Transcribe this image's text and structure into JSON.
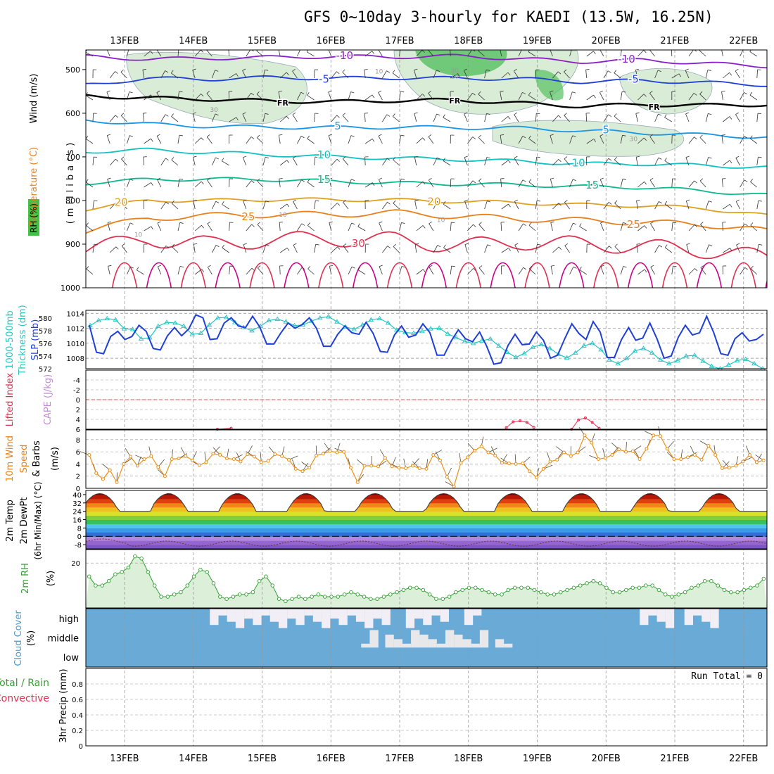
{
  "title": "GFS 0~10day 3-hourly for KAEDI (13.5W, 16.25N)",
  "dates": [
    "13FEB",
    "14FEB",
    "15FEB",
    "16FEB",
    "17FEB",
    "18FEB",
    "19FEB",
    "20FEB",
    "21FEB",
    "22FEB"
  ],
  "colors": {
    "purple": "#8a1fc8",
    "blue": "#1f3fd6",
    "skyblue": "#1a96e8",
    "cyan": "#12c2c2",
    "green": "#10b890",
    "gold": "#e0a020",
    "orange": "#e8801c",
    "red": "#e03050",
    "magenta": "#cc0088",
    "rh_fill": "#b9ddb3",
    "slp": "#1f3fd6",
    "thick": "#27c4c4",
    "wind": "#e8901c",
    "cloud": "#6aaad6",
    "rh2m": "#33a033"
  },
  "chart_data": [
    {
      "type": "contour",
      "panel": "upper-air",
      "ylabel_vertical": "(millibars)",
      "left_labels": [
        {
          "text": "Wind (m/s)",
          "color": "#000000"
        },
        {
          "text": "Temperature (°C)",
          "color": "#e8801c"
        },
        {
          "text": "RH (%)",
          "color": "#000000"
        }
      ],
      "pressure_ticks": [
        "500",
        "600",
        "700",
        "800",
        "900",
        "1000"
      ],
      "pressure_levels": [
        500,
        600,
        700,
        800,
        900,
        1000
      ],
      "ylim": [
        455,
        1000
      ],
      "contours": [
        {
          "label": "-10",
          "color": "#8a1fc8",
          "level": [
            470,
            476,
            474,
            472,
            470,
            471,
            469,
            475,
            482,
            478,
            486,
            492
          ],
          "labels": [
            {
              "text": "-10",
              "day": 3.2
            },
            {
              "text": "-10",
              "day": 7.3
            }
          ]
        },
        {
          "label": "-5",
          "color": "#1f3fd6",
          "level": [
            535,
            520,
            522,
            518,
            520,
            519,
            520,
            521,
            528,
            525,
            530,
            535
          ],
          "labels": [
            {
              "text": "-5",
              "day": 2.9
            },
            {
              "text": "-5",
              "day": 7.4
            }
          ]
        },
        {
          "label": "FR",
          "color": "#000000",
          "level": [
            560,
            565,
            568,
            572,
            574,
            571,
            570,
            577,
            584,
            580,
            582,
            580
          ],
          "labels": [
            {
              "text": "FR",
              "day": 2.3
            },
            {
              "text": "FR",
              "day": 4.8
            },
            {
              "text": "FR",
              "day": 7.7
            }
          ]
        },
        {
          "label": "5",
          "color": "#1a96e8",
          "level": [
            616,
            625,
            630,
            632,
            633,
            632,
            633,
            634,
            640,
            645,
            650,
            655
          ],
          "labels": [
            {
              "text": "5",
              "day": 3.1
            },
            {
              "text": "5",
              "day": 7.0
            }
          ]
        },
        {
          "label": "10",
          "color": "#12c2c2",
          "level": [
            688,
            684,
            690,
            695,
            700,
            703,
            706,
            710,
            716,
            716,
            720,
            724
          ],
          "labels": [
            {
              "text": "10",
              "day": 2.9
            },
            {
              "text": "10",
              "day": 6.6
            }
          ]
        },
        {
          "label": "15",
          "color": "#10b890",
          "level": [
            760,
            752,
            751,
            752,
            756,
            760,
            762,
            764,
            768,
            770,
            778,
            788
          ],
          "labels": [
            {
              "text": "15",
              "day": 2.9
            },
            {
              "text": "15",
              "day": 6.8
            }
          ]
        },
        {
          "label": "20",
          "color": "#e0a020",
          "level": [
            820,
            800,
            800,
            798,
            798,
            799,
            802,
            805,
            810,
            812,
            818,
            835
          ],
          "labels": [
            {
              "text": "20",
              "day": -0.05
            },
            {
              "text": "20",
              "day": 4.5
            }
          ]
        },
        {
          "label": "25",
          "color": "#e8801c",
          "level": [
            870,
            840,
            835,
            832,
            832,
            828,
            836,
            842,
            846,
            850,
            855,
            870
          ],
          "labels": [
            {
              "text": "25",
              "day": 1.8
            },
            {
              "text": "25",
              "day": 7.4
            }
          ]
        },
        {
          "label": "30",
          "color": "#e03050",
          "level": [
            912,
            888,
            900,
            890,
            888,
            890,
            905,
            895,
            900,
            905,
            915,
            930
          ],
          "labels": [
            {
              "text": "30",
              "day": 3.4
            }
          ]
        }
      ],
      "cells": [
        {
          "text": "30",
          "day": 1.3,
          "level": 597
        },
        {
          "text": "10",
          "day": 3.7,
          "level": 509
        },
        {
          "text": "30",
          "day": 4.8,
          "level": 507
        },
        {
          "text": "10",
          "day": 4.8,
          "level": 520
        },
        {
          "text": "10",
          "day": 2.3,
          "level": 837
        },
        {
          "text": "10",
          "day": 4.6,
          "level": 849
        },
        {
          "text": "10",
          "day": 0.2,
          "level": 883
        },
        {
          "text": "30",
          "day": 7.4,
          "level": 664
        }
      ]
    },
    {
      "type": "line",
      "panel": "thickness-slp",
      "left_labels": [
        {
          "text": "1000-500mb",
          "color": "#27c4c4"
        },
        {
          "text": "Thickness (dm)",
          "color": "#27c4c4"
        },
        {
          "text": "SLP (mb)",
          "color": "#1f3fd6"
        }
      ],
      "thickness_ticks": [
        "572",
        "574",
        "576",
        "578",
        "580"
      ],
      "slp_ticks": [
        "1008",
        "1010",
        "1012",
        "1014"
      ],
      "thickness_ylim": [
        572,
        581.2
      ],
      "slp_ylim": [
        1006.6,
        1014.4
      ],
      "series": [
        {
          "name": "1000-500mb Thickness",
          "marker": "triangle",
          "values": [
            578.8,
            579.6,
            579.9,
            579.7,
            578.3,
            578.2,
            576.7,
            576.9,
            578.7,
            579.3,
            579.2,
            578.7,
            577.4,
            577.6,
            578.9,
            580.0,
            580.1,
            579.3,
            578.5,
            578.0,
            578.7,
            579.6,
            579.8,
            579.4,
            578.8,
            578.9,
            579.5,
            580.0,
            580.2,
            579.4,
            578.6,
            578.2,
            578.9,
            579.7,
            579.9,
            579.2,
            578.1,
            577.7,
            577.6,
            577.9,
            578.3,
            578.4,
            577.5,
            576.9,
            576.3,
            576.0,
            576.4,
            576.7,
            575.6,
            574.6,
            573.8,
            574.4,
            575.4,
            575.8,
            575.2,
            574.3,
            573.7,
            574.5,
            575.6,
            576.0,
            575.0,
            573.4,
            572.8,
            573.6,
            574.8,
            575.2,
            574.5,
            573.4,
            572.8,
            573.3,
            574.0,
            574.1,
            573.2,
            572.4,
            572.0,
            572.6,
            573.3,
            573.5,
            572.8,
            572.0
          ]
        },
        {
          "name": "SLP",
          "marker": "none",
          "values": [
            1012.4,
            1008.8,
            1008.6,
            1010.9,
            1011.6,
            1010.5,
            1010.9,
            1012.4,
            1011.6,
            1009.3,
            1009.1,
            1011.0,
            1012.1,
            1011.0,
            1011.9,
            1013.8,
            1013.4,
            1010.5,
            1010.6,
            1012.7,
            1013.4,
            1012.3,
            1012.1,
            1013.6,
            1012.2,
            1009.9,
            1009.9,
            1011.4,
            1012.7,
            1012.0,
            1012.5,
            1013.4,
            1012.0,
            1009.6,
            1009.6,
            1011.2,
            1012.3,
            1011.4,
            1011.2,
            1012.8,
            1011.3,
            1008.9,
            1008.8,
            1011.1,
            1012.3,
            1010.8,
            1011.1,
            1012.6,
            1011.4,
            1008.4,
            1008.4,
            1010.3,
            1011.8,
            1010.6,
            1010.2,
            1011.5,
            1009.6,
            1007.2,
            1007.4,
            1009.7,
            1011.2,
            1009.8,
            1009.9,
            1011.5,
            1010.4,
            1008.0,
            1008.4,
            1010.6,
            1012.6,
            1011.3,
            1010.5,
            1012.9,
            1011.5,
            1008.1,
            1008.1,
            1010.5,
            1012.1,
            1010.4,
            1010.7,
            1012.7,
            1010.6,
            1008.0,
            1008.3,
            1010.8,
            1012.4,
            1011.1,
            1011.4,
            1013.6,
            1011.4,
            1008.6,
            1008.4,
            1010.6,
            1011.4,
            1010.3,
            1010.5,
            1011.2
          ]
        }
      ]
    },
    {
      "type": "line",
      "panel": "instability",
      "left_labels": [
        {
          "text": "Lifted Index",
          "color": "#e03050"
        },
        {
          "text": "CAPE (J/kg)",
          "color": "#c38ad6"
        }
      ],
      "li_ticks": [
        "-4",
        "-2",
        "0",
        "2",
        "4",
        "6"
      ],
      "ylim": [
        -6,
        6
      ],
      "zero_line": "dashed red",
      "series": [
        {
          "name": "Lifted Index",
          "color": "#e03050",
          "segments": [
            {
              "days": [
                1.35,
                1.55
              ],
              "values": [
                6.0,
                5.8
              ]
            },
            {
              "days": [
                5.55,
                5.65,
                5.75,
                5.85,
                5.95
              ],
              "values": [
                5.7,
                4.5,
                4.3,
                4.6,
                5.6
              ]
            },
            {
              "days": [
                6.5,
                6.6,
                6.7,
                6.8,
                6.9
              ],
              "values": [
                6.0,
                4.1,
                3.7,
                4.6,
                5.8
              ]
            }
          ]
        }
      ]
    },
    {
      "type": "line",
      "panel": "10m-wind",
      "left_labels": [
        {
          "text": "10m Wind",
          "color": "#e8801c"
        },
        {
          "text": "Speed",
          "color": "#e8801c"
        },
        {
          "text": "& Barbs",
          "color": "#000000"
        },
        {
          "text": "(m/s)",
          "color": "#000000"
        }
      ],
      "ticks": [
        "0",
        "2",
        "4",
        "6",
        "8"
      ],
      "ylim": [
        0,
        9.6
      ],
      "series": [
        {
          "name": "10m Wind Speed",
          "color": "#e8901c",
          "marker": "circle",
          "values": [
            5.5,
            2.5,
            1.5,
            3.0,
            1.0,
            4.0,
            5.2,
            3.7,
            4.8,
            5.3,
            3.5,
            2.0,
            4.8,
            4.9,
            5.3,
            4.6,
            3.8,
            4.3,
            5.7,
            5.5,
            4.9,
            4.8,
            4.4,
            5.6,
            5.2,
            4.3,
            4.5,
            5.6,
            5.3,
            4.7,
            3.2,
            2.8,
            3.4,
            5.4,
            5.7,
            6.1,
            5.9,
            6.0,
            3.4,
            1.0,
            3.7,
            3.7,
            3.6,
            5.0,
            3.6,
            3.4,
            3.3,
            3.7,
            3.3,
            3.2,
            5.5,
            4.6,
            1.9,
            0.3,
            4.2,
            5.1,
            6.2,
            6.9,
            5.9,
            5.4,
            4.2,
            4.1,
            4.0,
            4.1,
            2.8,
            1.8,
            3.2,
            4.4,
            4.7,
            5.9,
            5.3,
            5.9,
            8.7,
            7.5,
            4.8,
            5.0,
            5.5,
            6.4,
            6.0,
            6.1,
            4.8,
            6.5,
            8.7,
            8.6,
            6.5,
            4.8,
            4.8,
            5.1,
            5.5,
            4.7,
            7.0,
            5.5,
            3.3,
            3.4,
            3.7,
            4.4,
            5.5,
            4.3,
            4.6
          ]
        }
      ]
    },
    {
      "type": "area",
      "panel": "2m-temp",
      "left_labels": [
        {
          "text": "2m Temp",
          "color": "#000000"
        },
        {
          "text": "2m DewPt",
          "color": "#000000"
        },
        {
          "text": "(6hr Min/Max) (°C)",
          "color": "#000000"
        }
      ],
      "ticks": [
        "-8",
        "0",
        "8",
        "16",
        "24",
        "32",
        "40"
      ],
      "ylim": [
        -12,
        44
      ],
      "temp_daily": {
        "min": 24,
        "max": 41
      },
      "dewpt_approx": -5
    },
    {
      "type": "line",
      "panel": "2m-rh",
      "left_labels": [
        {
          "text": "2m RH",
          "color": "#33a033"
        },
        {
          "text": "(%)",
          "color": "#000000"
        }
      ],
      "ticks": [
        "20"
      ],
      "ylim": [
        0,
        26
      ],
      "series": [
        {
          "name": "2m RH",
          "color": "#33a033",
          "marker": "circle",
          "values": [
            14,
            10,
            10,
            12,
            15,
            16,
            18,
            23,
            22,
            16,
            10,
            5,
            5,
            6,
            7,
            10,
            14,
            17,
            16,
            11,
            5,
            4,
            5,
            6,
            6,
            7,
            12,
            14,
            10,
            4,
            3,
            4,
            5,
            4,
            5,
            6,
            5,
            5,
            5,
            6,
            7,
            6,
            5,
            4,
            4,
            5,
            6,
            7,
            8,
            9,
            9,
            8,
            6,
            4,
            4,
            5,
            7,
            8,
            9,
            9,
            8,
            7,
            6,
            6,
            8,
            9,
            9,
            9,
            8,
            7,
            6,
            6,
            7,
            8,
            9,
            10,
            11,
            12,
            11,
            9,
            7,
            7,
            8,
            9,
            9,
            10,
            10,
            8,
            6,
            5,
            6,
            7,
            9,
            10,
            12,
            12,
            10,
            8,
            7,
            7,
            8,
            9,
            10,
            13
          ]
        }
      ]
    },
    {
      "type": "heatmap",
      "panel": "cloud-cover",
      "left_labels": [
        {
          "text": "Cloud Cover",
          "color": "#4a9ad0"
        },
        {
          "text": "(%)",
          "color": "#000000"
        }
      ],
      "rows": [
        "high",
        "middle",
        "low"
      ],
      "clear_high_spans": [
        [
          1.8,
          4.4
        ],
        [
          4.65,
          5.2
        ],
        [
          5.5,
          5.75
        ],
        [
          8.05,
          8.45
        ],
        [
          8.7,
          9.15
        ]
      ],
      "clear_mid_spans": [
        [
          4.0,
          4.25
        ],
        [
          4.35,
          5.3
        ],
        [
          5.35,
          5.8
        ],
        [
          5.95,
          6.2
        ]
      ]
    },
    {
      "type": "bar",
      "panel": "precip",
      "left_labels": [
        {
          "text": "Total / Rain",
          "color": "#33a033"
        },
        {
          "text": "Convective",
          "color": "#e03050"
        },
        {
          "text": "3hr Precip (mm)",
          "color": "#000000"
        }
      ],
      "ticks": [
        "0",
        "0.2",
        "0.4",
        "0.6",
        "0.8"
      ],
      "ylim": [
        0,
        1.0
      ],
      "run_total": "Run Total = 0",
      "values": []
    }
  ]
}
